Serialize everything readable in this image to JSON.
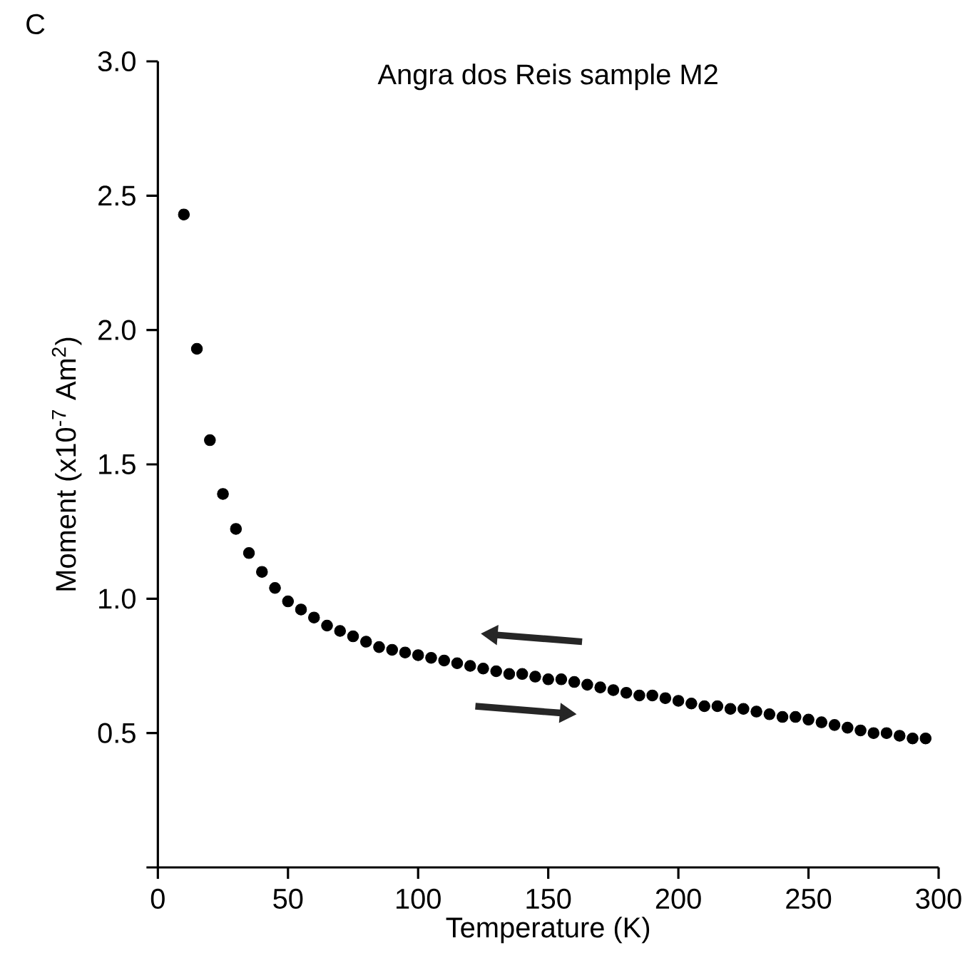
{
  "chart_data": {
    "type": "scatter",
    "title": "Angra dos Reis sample M2",
    "xlabel": "Temperature (K)",
    "ylabel": "Moment (x10$^{-7}$ Am$^{2}$)",
    "annotations": [
      "C"
    ],
    "x": [
      10,
      15,
      20,
      25,
      30,
      35,
      40,
      45,
      50,
      55,
      60,
      65,
      70,
      75,
      80,
      85,
      90,
      95,
      100,
      105,
      110,
      115,
      120,
      125,
      130,
      135,
      140,
      145,
      150,
      155,
      160,
      165,
      170,
      175,
      180,
      185,
      190,
      195,
      200,
      205,
      210,
      215,
      220,
      225,
      230,
      235,
      240,
      245,
      250,
      255,
      260,
      265,
      270,
      275,
      280,
      285,
      290,
      295
    ],
    "series": [
      {
        "color": "#000000",
        "values": [
          2.43,
          1.93,
          1.59,
          1.39,
          1.26,
          1.17,
          1.1,
          1.04,
          0.99,
          0.96,
          0.93,
          0.9,
          0.88,
          0.86,
          0.84,
          0.82,
          0.81,
          0.8,
          0.79,
          0.78,
          0.77,
          0.76,
          0.75,
          0.74,
          0.73,
          0.72,
          0.72,
          0.71,
          0.7,
          0.7,
          0.69,
          0.68,
          0.67,
          0.66,
          0.65,
          0.64,
          0.64,
          0.63,
          0.62,
          0.61,
          0.6,
          0.6,
          0.59,
          0.59,
          0.58,
          0.57,
          0.56,
          0.56,
          0.55,
          0.54,
          0.53,
          0.52,
          0.51,
          0.5,
          0.5,
          0.49,
          0.48,
          0.48
        ]
      }
    ],
    "xlim": [
      0,
      300
    ],
    "ylim": [
      0,
      3
    ],
    "xticks": [
      0,
      50,
      100,
      150,
      200,
      250,
      300
    ],
    "yticks": [
      {
        "value": 0,
        "label": null
      },
      {
        "value": 0.5,
        "label": "0.5"
      },
      {
        "value": 1,
        "label": "1.0"
      },
      {
        "value": 1.5,
        "label": "1.5"
      },
      {
        "value": 2,
        "label": "2.0"
      },
      {
        "value": 2.5,
        "label": "2.5"
      },
      {
        "value": 3,
        "label": "3.0"
      }
    ],
    "marker": "circle",
    "grid": false
  }
}
